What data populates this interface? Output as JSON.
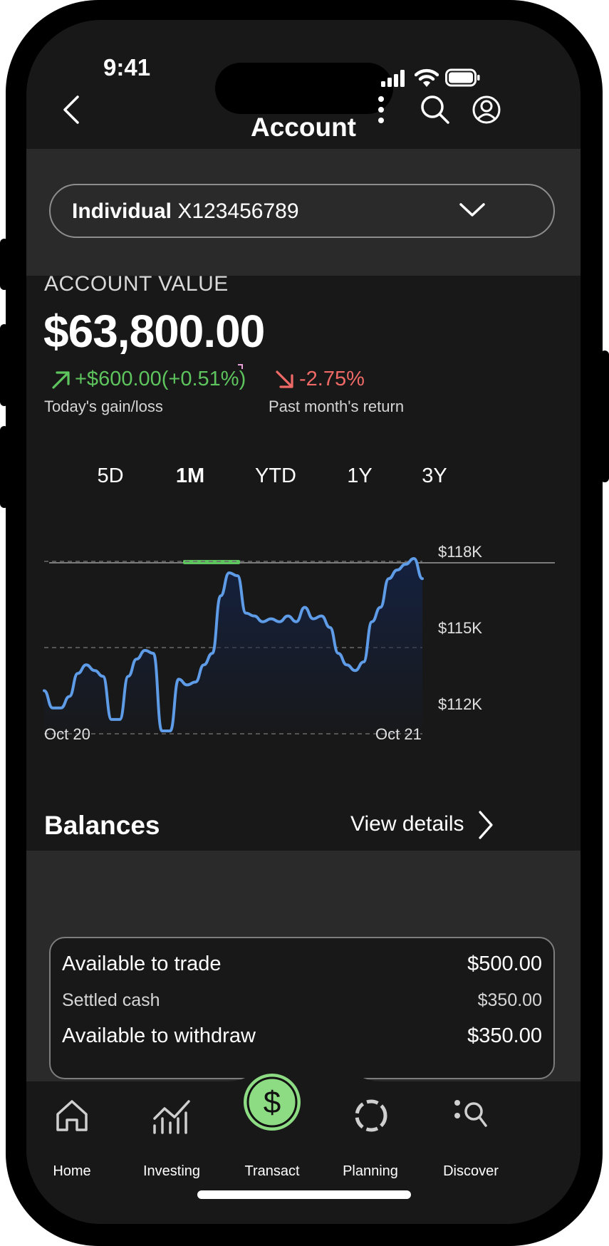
{
  "status_bar": {
    "time": "9:41"
  },
  "header": {
    "title": "Account",
    "back_icon": "chevron-left-icon",
    "more_icon": "more-vertical-icon",
    "search_icon": "search-icon",
    "profile_icon": "profile-icon"
  },
  "account_selector": {
    "type": "Individual",
    "number": "X123456789",
    "icon": "chevron-down-icon"
  },
  "summary": {
    "label": "ACCOUNT VALUE",
    "value": "$63,800.00",
    "today_change": "+$600.00(+0.51%)",
    "today_label": "Today's gain/loss",
    "month_change": "-2.75%",
    "month_label": "Past month's return"
  },
  "range_tabs": {
    "items": [
      "5D",
      "1M",
      "YTD",
      "1Y",
      "3Y"
    ],
    "active": "1M"
  },
  "chart_data": {
    "type": "area",
    "y_ticks": [
      "$118K",
      "$115K",
      "$112K"
    ],
    "ylim": [
      112,
      118
    ],
    "x_labels": [
      "Oct 20",
      "Oct 21"
    ],
    "grid": true,
    "series": [
      {
        "values": [
          113.5,
          112.9,
          112.9,
          113.3,
          114.1,
          114.4,
          114.2,
          114.0,
          112.5,
          112.5,
          114.0,
          114.6,
          114.9,
          114.8,
          112.1,
          112.1,
          113.9,
          113.7,
          113.8,
          114.4,
          114.8,
          116.8,
          117.6,
          117.5,
          116.2,
          116.1,
          115.9,
          116.0,
          115.9,
          116.1,
          115.9,
          116.4,
          116.0,
          116.1,
          115.7,
          114.8,
          114.4,
          114.2,
          114.5,
          115.9,
          116.4,
          117.4,
          117.7,
          117.9,
          118.1,
          117.4
        ]
      }
    ],
    "colors": {
      "line": "#5f9ce8",
      "fill_top": "#14213f",
      "grid": "#6a6a6a"
    }
  },
  "balances": {
    "title": "Balances",
    "view_details": "View details",
    "rows": [
      {
        "label": "Available to trade",
        "value": "$500.00"
      },
      {
        "label": "Settled cash",
        "value": "$350.00"
      },
      {
        "label": "Available to withdraw",
        "value": "$350.00"
      }
    ]
  },
  "bottom_nav": {
    "items": [
      {
        "label": "Home",
        "icon": "home-icon"
      },
      {
        "label": "Investing",
        "icon": "investing-chart-icon"
      },
      {
        "label": "Transact",
        "icon": "dollar-icon"
      },
      {
        "label": "Planning",
        "icon": "planning-circle-icon"
      },
      {
        "label": "Discover",
        "icon": "discover-search-icon"
      }
    ]
  },
  "colors": {
    "accent_green": "#5ec45e",
    "loss_red": "#ef6a66",
    "background": "#181818",
    "band": "#2a2a2a"
  }
}
